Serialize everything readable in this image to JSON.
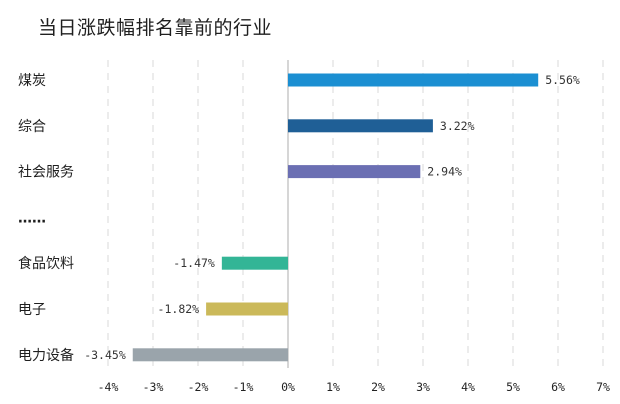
{
  "title": "当日涨跌幅排名靠前的行业",
  "chart_data": {
    "type": "bar",
    "orientation": "horizontal",
    "title": "当日涨跌幅排名靠前的行业",
    "xlabel": "",
    "ylabel": "",
    "xlim": [
      -4,
      7
    ],
    "grid": true,
    "legend": "none",
    "x_ticks": [
      "-4%",
      "-3%",
      "-2%",
      "-1%",
      "0%",
      "1%",
      "2%",
      "3%",
      "4%",
      "5%",
      "6%",
      "7%"
    ],
    "categories": [
      "煤炭",
      "综合",
      "社会服务",
      "……",
      "食品饮料",
      "电子",
      "电力设备"
    ],
    "values": [
      5.56,
      3.22,
      2.94,
      null,
      -1.47,
      -1.82,
      -3.45
    ],
    "value_labels": [
      "5.56%",
      "3.22%",
      "2.94%",
      "",
      "-1.47%",
      "-1.82%",
      "-3.45%"
    ],
    "colors": [
      "#1b8fd2",
      "#1f5f96",
      "#6b6fb3",
      null,
      "#33b596",
      "#cbb95a",
      "#9aa4ab"
    ]
  }
}
